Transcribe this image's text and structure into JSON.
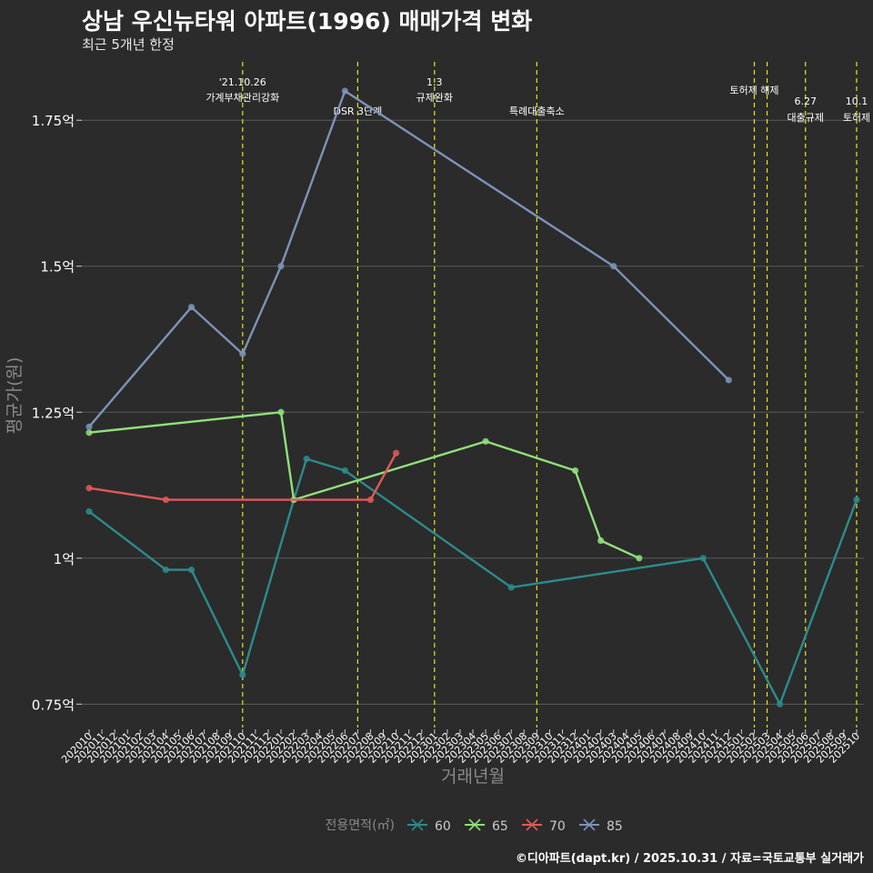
{
  "title": "상남 우신뉴타워 아파트(1996) 매매가격 변화",
  "subtitle": "최근 5개년 한정",
  "caption": "©디아파트(dapt.kr) / 2025.10.31 / 자료=국토교통부 실거래가",
  "chart_data": {
    "type": "line",
    "xlabel": "거래년월",
    "ylabel": "평균가(원)",
    "ylim": [
      0.71,
      1.85
    ],
    "yticks": [
      {
        "value": 0.75,
        "label": "0.75억"
      },
      {
        "value": 1.0,
        "label": "1억"
      },
      {
        "value": 1.25,
        "label": "1.25억"
      },
      {
        "value": 1.5,
        "label": "1.5억"
      },
      {
        "value": 1.75,
        "label": "1.75억"
      }
    ],
    "categories": [
      "202010",
      "202011",
      "202012",
      "202101",
      "202102",
      "202103",
      "202104",
      "202105",
      "202106",
      "202107",
      "202108",
      "202109",
      "202110",
      "202111",
      "202112",
      "202201",
      "202202",
      "202203",
      "202204",
      "202205",
      "202206",
      "202207",
      "202208",
      "202209",
      "202210",
      "202211",
      "202212",
      "202301",
      "202302",
      "202303",
      "202304",
      "202305",
      "202306",
      "202307",
      "202308",
      "202309",
      "202310",
      "202311",
      "202312",
      "202401",
      "202402",
      "202403",
      "202404",
      "202405",
      "202406",
      "202407",
      "202408",
      "202409",
      "202410",
      "202411",
      "202412",
      "202501",
      "202502",
      "202503",
      "202504",
      "202505",
      "202506",
      "202507",
      "202508",
      "202509",
      "202510"
    ],
    "legend_title": "전용면적(㎡)",
    "legend_position": "bottom",
    "series": [
      {
        "name": "60",
        "color": "#2e8b8b",
        "points": [
          [
            "202010",
            1.08
          ],
          [
            "202104",
            0.98
          ],
          [
            "202106",
            0.98
          ],
          [
            "202110",
            0.8
          ],
          [
            "202202",
            1.1
          ],
          [
            "202203",
            1.17
          ],
          [
            "202206",
            1.15
          ],
          [
            "202307",
            0.95
          ],
          [
            "202410",
            1.0
          ],
          [
            "202504",
            0.75
          ],
          [
            "202510",
            1.1
          ]
        ]
      },
      {
        "name": "65",
        "color": "#90e07a",
        "points": [
          [
            "202010",
            1.215
          ],
          [
            "202201",
            1.25
          ],
          [
            "202202",
            1.1
          ],
          [
            "202305",
            1.2
          ],
          [
            "202312",
            1.15
          ],
          [
            "202402",
            1.03
          ],
          [
            "202405",
            1.0
          ]
        ]
      },
      {
        "name": "70",
        "color": "#e05a5a",
        "points": [
          [
            "202010",
            1.12
          ],
          [
            "202104",
            1.1
          ],
          [
            "202208",
            1.1
          ],
          [
            "202210",
            1.18
          ]
        ]
      },
      {
        "name": "85",
        "color": "#7f93b8",
        "points": [
          [
            "202010",
            1.225
          ],
          [
            "202106",
            1.43
          ],
          [
            "202110",
            1.35
          ],
          [
            "202201",
            1.5
          ],
          [
            "202206",
            1.8
          ],
          [
            "202403",
            1.5
          ],
          [
            "202412",
            1.305
          ]
        ]
      }
    ],
    "annotations": [
      {
        "month": "202110",
        "lines": [
          "'21.10.26",
          "가계부채관리강화"
        ]
      },
      {
        "month": "202207",
        "lines": [
          "DSR 3단계"
        ]
      },
      {
        "month": "202301",
        "lines": [
          "1.3",
          "규제완화"
        ]
      },
      {
        "month": "202309",
        "lines": [
          "특례대출축소"
        ]
      },
      {
        "month": "202502",
        "lines": [
          "토허제 해제"
        ]
      },
      {
        "month": "202503",
        "lines": []
      },
      {
        "month": "202506",
        "lines": [
          "6.27",
          "대출규제"
        ]
      },
      {
        "month": "202510",
        "lines": [
          "10.1",
          "토허제"
        ]
      }
    ],
    "colors": {
      "background": "#2b2b2b",
      "grid": "#5a5a5a",
      "vline": "#e6e619",
      "axis_text": "#ffffff",
      "label_text": "#8a8a8a"
    }
  }
}
